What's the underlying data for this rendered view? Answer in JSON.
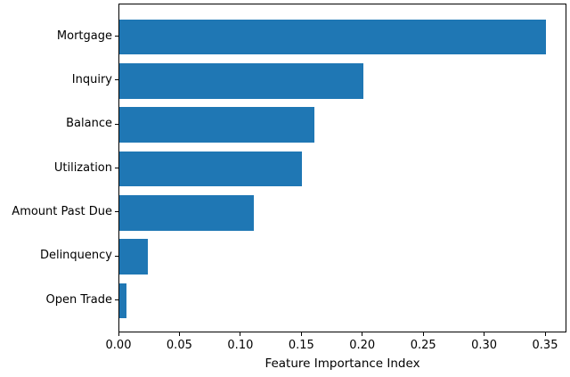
{
  "chart_data": {
    "type": "bar",
    "orientation": "horizontal",
    "title": "",
    "xlabel": "Feature Importance Index",
    "ylabel": "",
    "categories": [
      "Mortgage",
      "Inquiry",
      "Balance",
      "Utilization",
      "Amount Past Due",
      "Delinquency",
      "Open Trade"
    ],
    "values": [
      0.35,
      0.2,
      0.16,
      0.15,
      0.11,
      0.023,
      0.006
    ],
    "xlim": [
      0,
      0.3675
    ],
    "xticks": [
      0.0,
      0.05,
      0.1,
      0.15,
      0.2,
      0.25,
      0.3,
      0.35
    ],
    "xtick_labels": [
      "0.00",
      "0.05",
      "0.10",
      "0.15",
      "0.20",
      "0.25",
      "0.30",
      "0.35"
    ],
    "bar_color": "#1f77b4",
    "spine_color": "#000000",
    "grid": false,
    "legend": null
  }
}
